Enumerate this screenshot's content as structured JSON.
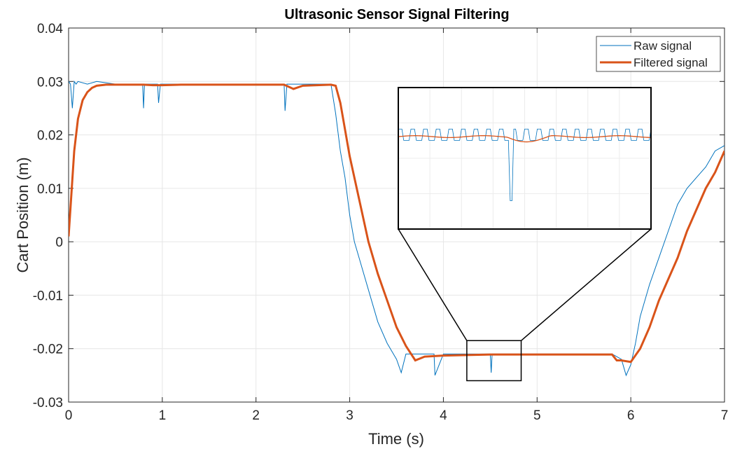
{
  "chart_data": {
    "type": "line",
    "title": "Ultrasonic Sensor Signal Filtering",
    "xlabel": "Time (s)",
    "ylabel": "Cart Position (m)",
    "xlim": [
      0,
      7
    ],
    "ylim": [
      -0.03,
      0.04
    ],
    "xticks": [
      "0",
      "1",
      "2",
      "3",
      "4",
      "5",
      "6",
      "7"
    ],
    "yticks": [
      "0.04",
      "0.03",
      "0.02",
      "0.01",
      "0",
      "-0.01",
      "-0.02",
      "-0.03"
    ],
    "grid": true,
    "legend_position": "top-right",
    "series": [
      {
        "name": "Raw signal",
        "color": "#0072BD",
        "x": [
          0,
          0.02,
          0.04,
          0.06,
          0.08,
          0.1,
          0.2,
          0.3,
          0.5,
          0.79,
          0.8,
          0.81,
          0.95,
          0.96,
          0.98,
          1.2,
          1.5,
          2.0,
          2.3,
          2.31,
          2.33,
          2.5,
          2.8,
          2.85,
          2.9,
          2.95,
          3.0,
          3.05,
          3.1,
          3.2,
          3.3,
          3.4,
          3.5,
          3.55,
          3.6,
          3.8,
          3.9,
          3.91,
          4.0,
          4.2,
          4.5,
          4.51,
          4.52,
          4.8,
          5.0,
          5.5,
          5.8,
          5.9,
          5.95,
          6.0,
          6.05,
          6.1,
          6.2,
          6.3,
          6.4,
          6.5,
          6.6,
          6.7,
          6.8,
          6.9,
          7.0
        ],
        "y": [
          0.03,
          0.0295,
          0.025,
          0.03,
          0.0295,
          0.03,
          0.0295,
          0.03,
          0.0295,
          0.0295,
          0.025,
          0.0295,
          0.0295,
          0.026,
          0.0295,
          0.0295,
          0.0295,
          0.0295,
          0.0295,
          0.0245,
          0.0295,
          0.0295,
          0.0295,
          0.024,
          0.017,
          0.012,
          0.005,
          0.0,
          -0.003,
          -0.009,
          -0.015,
          -0.019,
          -0.022,
          -0.0245,
          -0.021,
          -0.021,
          -0.021,
          -0.025,
          -0.021,
          -0.021,
          -0.021,
          -0.0245,
          -0.021,
          -0.021,
          -0.021,
          -0.021,
          -0.021,
          -0.022,
          -0.025,
          -0.023,
          -0.019,
          -0.014,
          -0.008,
          -0.003,
          0.002,
          0.007,
          0.01,
          0.012,
          0.014,
          0.017,
          0.018
        ]
      },
      {
        "name": "Filtered signal",
        "color": "#D95319",
        "x": [
          0,
          0.03,
          0.06,
          0.1,
          0.15,
          0.2,
          0.25,
          0.3,
          0.4,
          0.5,
          0.8,
          0.9,
          1.0,
          1.2,
          1.5,
          2.0,
          2.3,
          2.4,
          2.5,
          2.8,
          2.85,
          2.9,
          3.0,
          3.1,
          3.2,
          3.3,
          3.4,
          3.5,
          3.6,
          3.7,
          3.8,
          4.0,
          4.5,
          5.0,
          5.5,
          5.8,
          5.85,
          5.9,
          6.0,
          6.1,
          6.2,
          6.3,
          6.4,
          6.5,
          6.6,
          6.7,
          6.8,
          6.9,
          7.0
        ],
        "y": [
          0.001,
          0.009,
          0.017,
          0.023,
          0.0265,
          0.028,
          0.0288,
          0.0292,
          0.0294,
          0.0294,
          0.0294,
          0.0293,
          0.0293,
          0.0294,
          0.0294,
          0.0294,
          0.0294,
          0.0286,
          0.0292,
          0.0294,
          0.0292,
          0.026,
          0.016,
          0.008,
          0.0,
          -0.006,
          -0.011,
          -0.016,
          -0.0195,
          -0.0222,
          -0.0215,
          -0.0213,
          -0.0211,
          -0.0211,
          -0.0211,
          -0.0211,
          -0.0222,
          -0.0222,
          -0.0225,
          -0.02,
          -0.016,
          -0.011,
          -0.007,
          -0.003,
          0.002,
          0.006,
          0.01,
          0.013,
          0.017
        ]
      }
    ],
    "inset": {
      "source_xlim": [
        4.25,
        4.83
      ],
      "source_ylim": [
        -0.026,
        -0.0185
      ]
    }
  }
}
